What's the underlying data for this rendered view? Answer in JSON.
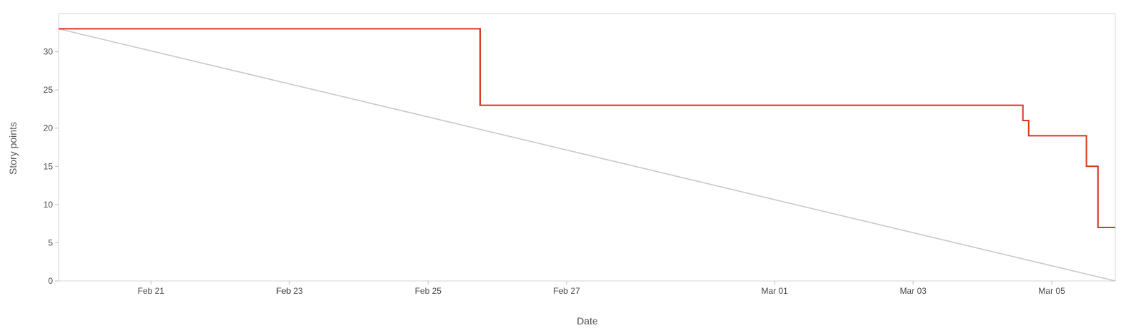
{
  "chart_data": {
    "type": "line",
    "title": "",
    "xlabel": "Date",
    "ylabel": "Story points",
    "x_ticks": [
      "Feb 21",
      "Feb 23",
      "Feb 25",
      "Feb 27",
      "Mar 01",
      "Mar 03",
      "Mar 05"
    ],
    "y_ticks": [
      0,
      5,
      10,
      15,
      20,
      25,
      30
    ],
    "xlim": [
      "2024-02-19T16:00",
      "2024-03-05T22:00"
    ],
    "ylim": [
      0,
      35
    ],
    "grid": false,
    "legend": "none",
    "series": [
      {
        "kind": "step",
        "color": "#d9361c",
        "points": [
          [
            "2024-02-19T16:00",
            33
          ],
          [
            "2024-02-25T18:00",
            33
          ],
          [
            "2024-02-25T18:00",
            23
          ],
          [
            "2024-03-04T14:00",
            23
          ],
          [
            "2024-03-04T14:00",
            21
          ],
          [
            "2024-03-04T16:00",
            21
          ],
          [
            "2024-03-04T16:00",
            19
          ],
          [
            "2024-03-05T12:00",
            19
          ],
          [
            "2024-03-05T12:00",
            15
          ],
          [
            "2024-03-05T16:00",
            15
          ],
          [
            "2024-03-05T16:00",
            7
          ],
          [
            "2024-03-05T22:00",
            7
          ]
        ]
      },
      {
        "kind": "line",
        "color": "#c8c8c8",
        "points": [
          [
            "2024-02-19T16:00",
            33
          ],
          [
            "2024-03-05T22:00",
            0
          ]
        ]
      }
    ]
  }
}
